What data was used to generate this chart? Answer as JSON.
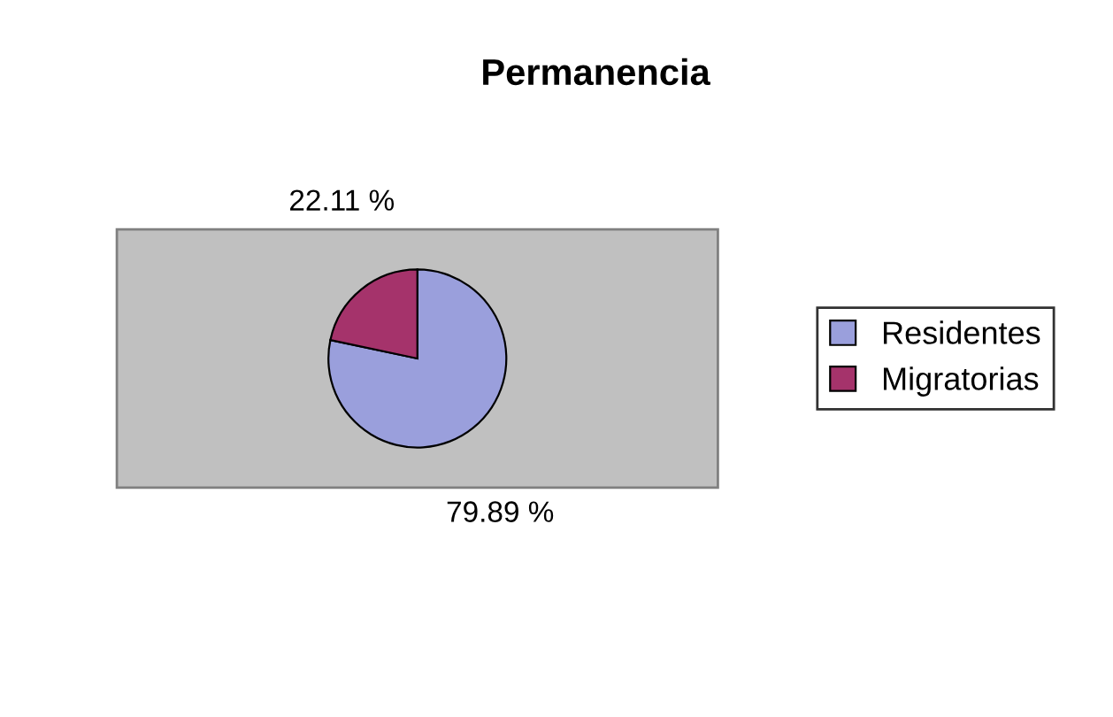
{
  "chart_data": {
    "type": "pie",
    "title": "Permanencia",
    "categories": [
      "Residentes",
      "Migratorias"
    ],
    "values": [
      79.89,
      22.11
    ],
    "colors": [
      "#9a9fdc",
      "#a5336b"
    ],
    "value_labels": [
      "79.89 %",
      "22.11 %"
    ],
    "legend": "right"
  }
}
